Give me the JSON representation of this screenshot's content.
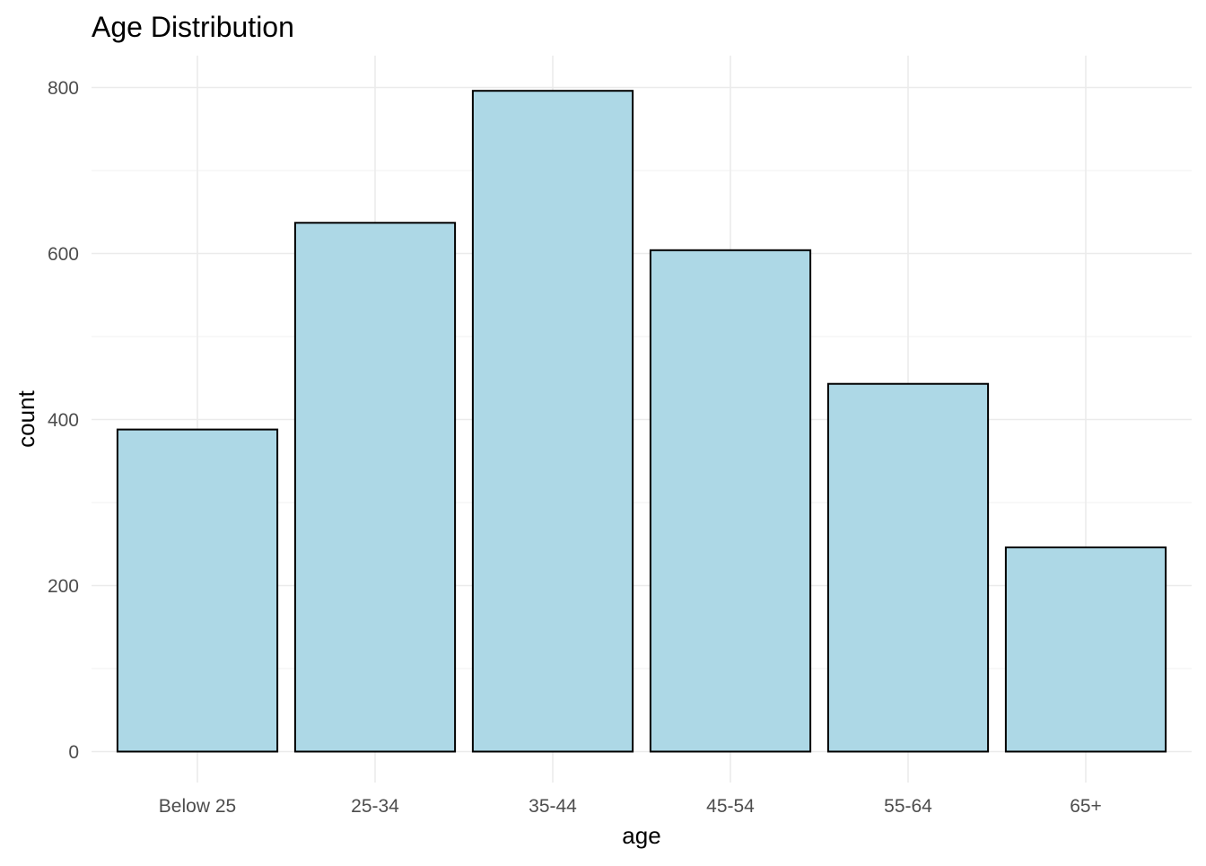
{
  "chart_data": {
    "type": "bar",
    "title": "Age Distribution",
    "xlabel": "age",
    "ylabel": "count",
    "categories": [
      "Below 25",
      "25-34",
      "35-44",
      "45-54",
      "55-64",
      "65+"
    ],
    "values": [
      388,
      637,
      796,
      604,
      443,
      246
    ],
    "ylim": [
      0,
      800
    ],
    "y_ticks": [
      0,
      200,
      400,
      600,
      800
    ],
    "grid": true,
    "bar_fill": "#add8e6",
    "bar_outline": "#000000"
  }
}
